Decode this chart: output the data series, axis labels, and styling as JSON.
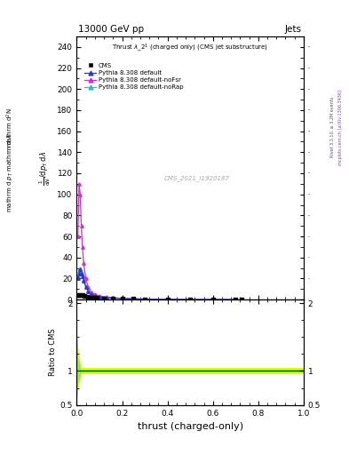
{
  "title_top_left": "13000 GeV pp",
  "title_top_right": "Jets",
  "plot_title": "Thrust λ_2¹ (charged only) (CMS jet substructure)",
  "xlabel": "thrust (charged-only)",
  "cms_label": "CMS",
  "watermark": "CMS_2021_I1920187",
  "right_label": "mcplots.cern.ch [arXiv:1306.3436]",
  "right_label2": "Rivet 3.1.10, ≥ 3.2M events",
  "ylim_main": [
    0,
    250
  ],
  "ylim_ratio": [
    0.5,
    2.05
  ],
  "xlim": [
    0.0,
    1.0
  ],
  "yticks_main": [
    0,
    20,
    40,
    60,
    80,
    100,
    120,
    140,
    160,
    180,
    200,
    220,
    240
  ],
  "yticks_ratio": [
    0.5,
    1.0,
    2.0
  ],
  "background_color": "#ffffff",
  "cms_x": [
    0.005,
    0.015,
    0.025,
    0.035,
    0.05,
    0.07,
    0.09,
    0.12,
    0.16,
    0.2,
    0.25,
    0.3,
    0.4,
    0.5,
    0.6,
    0.7,
    0.725
  ],
  "cms_y": [
    4.0,
    4.5,
    4.0,
    3.5,
    2.8,
    2.2,
    1.8,
    1.4,
    1.0,
    0.8,
    0.6,
    0.4,
    0.25,
    0.15,
    0.08,
    0.04,
    0.0
  ],
  "pythia_default_x": [
    0.005,
    0.01,
    0.015,
    0.02,
    0.025,
    0.03,
    0.04,
    0.05,
    0.065,
    0.08,
    0.1,
    0.13,
    0.16,
    0.2,
    0.25,
    0.3,
    0.4,
    0.5,
    0.6,
    0.7
  ],
  "pythia_default_y": [
    20.0,
    25.0,
    29.0,
    25.0,
    22.0,
    18.0,
    12.0,
    8.0,
    5.0,
    3.5,
    2.5,
    2.0,
    1.5,
    1.0,
    0.7,
    0.4,
    0.2,
    0.1,
    0.05,
    0.02
  ],
  "pythia_noFsr_x": [
    0.005,
    0.01,
    0.015,
    0.02,
    0.025,
    0.03,
    0.04,
    0.05,
    0.065,
    0.08,
    0.1,
    0.13,
    0.16,
    0.2,
    0.25,
    0.3,
    0.4,
    0.5,
    0.6,
    0.7
  ],
  "pythia_noFsr_y": [
    60.0,
    110.0,
    100.0,
    70.0,
    50.0,
    35.0,
    20.0,
    12.0,
    7.0,
    5.0,
    3.5,
    2.5,
    1.8,
    1.2,
    0.8,
    0.5,
    0.3,
    0.15,
    0.07,
    0.03
  ],
  "pythia_noRap_x": [
    0.005,
    0.01,
    0.015,
    0.02,
    0.025,
    0.03,
    0.04,
    0.05,
    0.065,
    0.08,
    0.1,
    0.13,
    0.16,
    0.2,
    0.25,
    0.3,
    0.4,
    0.5,
    0.6,
    0.7
  ],
  "pythia_noRap_y": [
    22.0,
    27.0,
    30.0,
    26.0,
    23.0,
    19.0,
    13.0,
    9.0,
    5.5,
    4.0,
    3.0,
    2.2,
    1.6,
    1.1,
    0.75,
    0.45,
    0.25,
    0.12,
    0.06,
    0.025
  ],
  "color_default": "#3333cc",
  "color_noFsr": "#cc33cc",
  "color_noRap": "#33bbbb",
  "color_cms": "#000000",
  "ratio_yellow_color": "#ddff00",
  "ratio_green_color": "#88ee44",
  "ratio_line_color": "#006600"
}
